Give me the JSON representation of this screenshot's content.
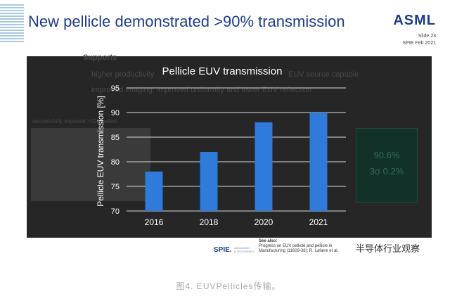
{
  "slide": {
    "title": "New pellicle demonstrated >90% transmission",
    "logo": "ASML",
    "slide_number": "Slide 23",
    "date": "SPIE Feb 2021"
  },
  "background_text": {
    "heading": "Supports",
    "bullet_1": "higher productivity",
    "bullet_1_tail": "EUV source capable",
    "bullet_2": "improved imaging: improved uniformity and lower EUV reflection",
    "image_caption": "successfully exposed >10k wafers",
    "panel_value": "90.6%",
    "panel_sigma": "3σ 0.2%"
  },
  "chart_data": {
    "type": "bar",
    "title": "Pellicle EUV transmission",
    "xlabel": "",
    "ylabel": "Pellicle EUV transmission [%]",
    "categories": [
      "2016",
      "2018",
      "2020",
      "2021"
    ],
    "values": [
      78,
      82,
      88,
      90
    ],
    "ylim": [
      70,
      95
    ],
    "yticks": [
      70,
      75,
      80,
      85,
      90,
      95
    ],
    "grid": true,
    "bar_color": "#2f7bdb",
    "background": "#262626",
    "text_color": "#ffffff",
    "grid_color": "#d9d9d9"
  },
  "footer": {
    "spie": "SPIE.",
    "spie_sub_1": "ADVANCED",
    "spie_sub_2": "LITHOGRAPHY",
    "see_also_label": "See also:",
    "see_also_line_1": "Progress on EUV pellicle and pellicle in",
    "see_also_line_2": "Manufacturing  (11609-38); R. Lafarre et al."
  },
  "watermark": "半导体行业观察",
  "caption": "图4. EUVPellicles传输。"
}
